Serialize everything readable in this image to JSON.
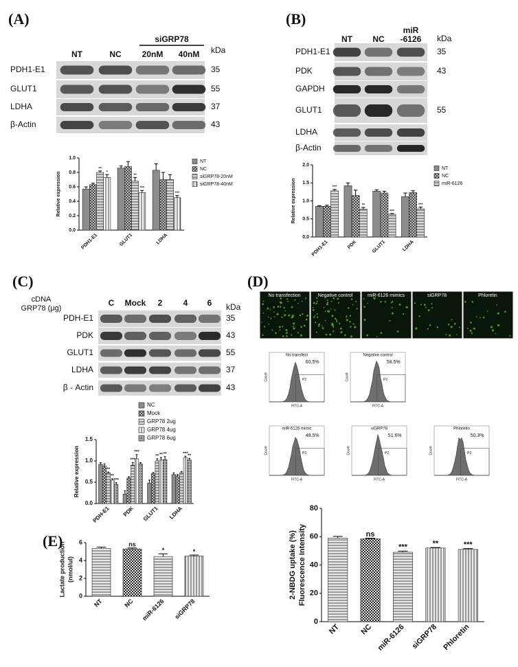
{
  "panels": {
    "A": {
      "label": "(A)",
      "group": "siGRP78",
      "kda_title": "kDa",
      "lanes": [
        [
          "NT"
        ],
        [
          "NC"
        ],
        [
          "20nM"
        ],
        [
          "40nM"
        ]
      ],
      "rows": [
        {
          "name": "PDH1-E1",
          "kda": "35"
        },
        {
          "name": "GLUT1",
          "kda": "55"
        },
        {
          "name": "LDHA",
          "kda": "37"
        },
        {
          "name": "β-Actin",
          "kda": "43"
        }
      ]
    },
    "B": {
      "label": "(B)",
      "kda_title": "kDa",
      "lanes": [
        [
          "NT"
        ],
        [
          "NC"
        ],
        [
          "miR",
          "-6126"
        ]
      ],
      "rows": [
        {
          "name": "PDH1-E1",
          "kda": "35"
        },
        {
          "name": "PDK",
          "kda": "43"
        },
        {
          "name": "GAPDH"
        },
        {
          "name": "GLUT1",
          "kda": "55"
        },
        {
          "name": "LDHA"
        },
        {
          "name": "β-Actin"
        }
      ]
    },
    "C": {
      "label": "(C)",
      "caption": [
        "cDNA",
        "GRP78 (μg)"
      ],
      "kda_title": "kDa",
      "lanes": [
        [
          "C"
        ],
        [
          "Mock"
        ],
        [
          "2"
        ],
        [
          "4"
        ],
        [
          "6"
        ]
      ],
      "rows": [
        {
          "name": "PDH-E1",
          "kda": "35"
        },
        {
          "name": "PDK",
          "kda": "43"
        },
        {
          "name": "GLUT1",
          "kda": "55"
        },
        {
          "name": "LDHA",
          "kda": "37"
        },
        {
          "name": "β - Actin",
          "kda": "43"
        }
      ]
    },
    "D": {
      "label": "(D)",
      "images": [
        "No transfection",
        "Negative control",
        "miR-6126 mimics",
        "siGRP78",
        "Phloretin"
      ],
      "x_axis": "FITC-A",
      "y_axis": "Count",
      "flow": [
        {
          "title": "No transfect",
          "percent": "60.5%",
          "gate": "P2"
        },
        {
          "title": "Negative control",
          "percent": "58.5%",
          "gate": "P2"
        },
        {
          "title": "miR-6126 mimic",
          "percent": "48.5%",
          "gate": "P2"
        },
        {
          "title": "siGRP78",
          "percent": "51.6%",
          "gate": "P2"
        },
        {
          "title": "Phloretin",
          "percent": "50.3%",
          "gate": "P2"
        }
      ]
    },
    "E": {
      "label": "(E)"
    }
  },
  "chart_data": [
    {
      "type": "bar",
      "y_label": "Relative expression",
      "categories": [
        "PDH1-E1",
        "GLUT1",
        "LDHA"
      ],
      "series": [
        {
          "name": "NT",
          "color": "#8c8c8c",
          "values": [
            0.57,
            0.86,
            0.83
          ],
          "errors": [
            0.03,
            0.03,
            0.09
          ],
          "stars": [
            null,
            null,
            null
          ]
        },
        {
          "name": "NC",
          "color": "#e6e6e6",
          "values": [
            0.63,
            0.88,
            0.7
          ],
          "errors": [
            0.02,
            0.07,
            0.1
          ],
          "stars": [
            null,
            null,
            null
          ]
        },
        {
          "name": "siGRP78-20nM",
          "color": "#dcdcdc",
          "values": [
            0.8,
            0.68,
            0.7
          ],
          "errors": [
            0.02,
            0.05,
            0.07
          ],
          "stars": [
            "**",
            "**",
            null
          ]
        },
        {
          "name": "siGRP78-40nM",
          "color": "#f4f4f4",
          "values": [
            0.73,
            0.52,
            0.45
          ],
          "errors": [
            0.04,
            0.03,
            0.03
          ],
          "stars": [
            "*",
            "***",
            "***"
          ]
        }
      ],
      "ylim": [
        0,
        1.0
      ],
      "yticks": [
        {
          "value": 0,
          "label": "0.0"
        },
        0.2,
        0.4,
        0.6,
        0.8,
        {
          "value": 1.0,
          "label": "1.0"
        }
      ]
    },
    {
      "type": "bar",
      "y_label": "Relative expression",
      "categories": [
        "PDH1-E1",
        "PDK",
        "GLUT1",
        "LDHA"
      ],
      "series": [
        {
          "name": "NT",
          "color": "#8c8c8c",
          "values": [
            0.85,
            1.42,
            1.27,
            1.12
          ],
          "errors": [
            0.02,
            0.08,
            0.04,
            0.1
          ],
          "stars": [
            null,
            null,
            null,
            null
          ]
        },
        {
          "name": "NC",
          "color": "#e6e6e6",
          "values": [
            0.85,
            1.15,
            1.22,
            1.23
          ],
          "errors": [
            0.03,
            0.15,
            0.05,
            0.05
          ],
          "stars": [
            null,
            null,
            null,
            null
          ]
        },
        {
          "name": "miR-6126",
          "color": "#dcdcdc",
          "values": [
            1.28,
            0.77,
            0.63,
            0.78
          ],
          "errors": [
            0.04,
            0.05,
            0.02,
            0.05
          ],
          "stars": [
            "***",
            "**",
            "***",
            "***"
          ]
        }
      ],
      "ylim": [
        0,
        2.0
      ],
      "yticks": [
        {
          "value": 0,
          "label": "0.0"
        },
        0.5,
        {
          "value": 1.0,
          "label": "1.0"
        },
        1.5,
        {
          "value": 2.0,
          "label": "2.0"
        }
      ]
    },
    {
      "type": "bar",
      "y_label": "Relative expression",
      "categories": [
        "PDH-E1",
        "PDK",
        "GLUT1",
        "LDHA"
      ],
      "series": [
        {
          "name": "NC",
          "color": "#8c8c8c",
          "values": [
            0.92,
            0.22,
            0.48,
            0.68
          ],
          "errors": [
            0.04,
            0.08,
            0.07,
            0.04
          ],
          "stars": [
            null,
            null,
            null,
            null
          ]
        },
        {
          "name": "Mock",
          "color": "#e6e6e6",
          "values": [
            0.88,
            0.6,
            0.7,
            0.65
          ],
          "errors": [
            0.05,
            0.03,
            0.03,
            0.03
          ],
          "stars": [
            null,
            null,
            null,
            null
          ]
        },
        {
          "name": "GRP78  2ug",
          "color": "#dcdcdc",
          "values": [
            0.72,
            0.9,
            1.0,
            0.72
          ],
          "errors": [
            0.02,
            0.06,
            0.05,
            0.03
          ],
          "stars": [
            "**",
            "***",
            "**",
            null
          ]
        },
        {
          "name": "GRP78  4ug",
          "color": "#f4f4f4",
          "values": [
            0.55,
            1.05,
            1.02,
            1.08
          ],
          "errors": [
            0.03,
            0.1,
            0.06,
            0.03
          ],
          "stars": [
            "**",
            "***",
            "**",
            "***"
          ]
        },
        {
          "name": "GRP78  6ug",
          "color": "#a6a6a6",
          "values": [
            0.45,
            0.93,
            1.03,
            1.02
          ],
          "errors": [
            0.04,
            0.03,
            0.07,
            0.04
          ],
          "stars": [
            "***",
            null,
            "**",
            "**"
          ]
        }
      ],
      "ylim": [
        0,
        1.5
      ],
      "yticks": [
        {
          "value": 0,
          "label": "0.0"
        },
        0.5,
        {
          "value": 1.0,
          "label": "1.0"
        },
        1.5
      ]
    },
    {
      "type": "bar",
      "y_label": [
        "Lactate production",
        "(nmol/ul)"
      ],
      "categories": [
        "NT",
        "NC",
        "miR-6126",
        "siGRP78"
      ],
      "color": "#e8e8e8",
      "values": [
        5.35,
        5.3,
        4.45,
        4.5
      ],
      "errors": [
        0.15,
        0.1,
        0.3,
        0.12
      ],
      "stars": [
        null,
        "ns",
        "*",
        "*"
      ],
      "ylim": [
        0,
        6
      ],
      "yticks": [
        0,
        2,
        4,
        6
      ]
    },
    {
      "type": "bar",
      "y_label": [
        "2-NBDG uptake (%)",
        "Fluorescence Intensity"
      ],
      "categories": [
        "NT",
        "NC",
        "miR-6126",
        "siGRP78",
        "Phloretin"
      ],
      "color": "#e8e8e8",
      "values": [
        59,
        58.5,
        49,
        52,
        51
      ],
      "errors": [
        1.2,
        0.4,
        0.8,
        0.3,
        0.6
      ],
      "stars": [
        null,
        "ns",
        "***",
        "**",
        "***"
      ],
      "ylim": [
        0,
        80
      ],
      "yticks": [
        0,
        20,
        40,
        60,
        80
      ]
    }
  ]
}
